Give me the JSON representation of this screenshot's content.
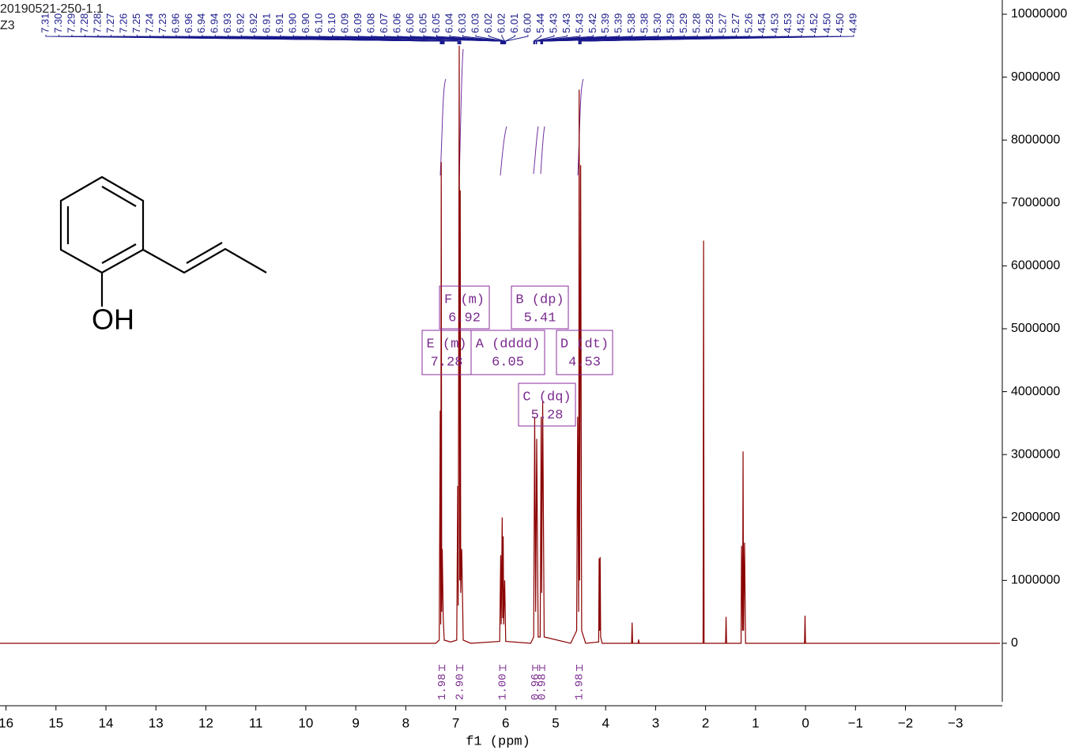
{
  "header": {
    "title": "20190521-250-1.1",
    "subtitle": "Z3"
  },
  "structure": {
    "label": "OH"
  },
  "chart_data": {
    "type": "line",
    "xlabel": "f1 (ppm)",
    "xlim": [
      16.12,
      -3.89
    ],
    "ylim": [
      -930000,
      10226000
    ],
    "xticks": [
      16,
      15,
      14,
      13,
      12,
      11,
      10,
      9,
      8,
      7,
      6,
      5,
      4,
      3,
      2,
      1,
      0,
      {
        "value": -1,
        "label": "−1"
      },
      {
        "value": -2,
        "label": "−2"
      },
      {
        "value": -3,
        "label": "−3"
      }
    ],
    "yticks": [
      0,
      1000000,
      2000000,
      3000000,
      4000000,
      5000000,
      6000000,
      7000000,
      8000000,
      9000000,
      10000000
    ],
    "series": [
      {
        "color": "#8b0000",
        "x": [
          16.12,
          7.4,
          7.33,
          7.31,
          7.3,
          7.29,
          7.28,
          7.27,
          7.25,
          7.23,
          7.1,
          6.98,
          6.96,
          6.95,
          6.93,
          6.92,
          6.91,
          6.9,
          6.88,
          6.85,
          6.7,
          6.12,
          6.1,
          6.09,
          6.07,
          6.06,
          6.05,
          6.04,
          6.02,
          6.0,
          5.5,
          5.44,
          5.42,
          5.4,
          5.38,
          5.35,
          5.31,
          5.29,
          5.28,
          5.26,
          5.23,
          4.7,
          4.58,
          4.56,
          4.54,
          4.53,
          4.52,
          4.5,
          4.48,
          4.4,
          4.14,
          4.13,
          4.12,
          4.11,
          4.1,
          4.07,
          3.48,
          3.47,
          3.46,
          3.35,
          3.34,
          3.33,
          2.05,
          2.04,
          2.03,
          1.6,
          1.59,
          1.58,
          1.29,
          1.28,
          1.26,
          1.25,
          1.24,
          1.22,
          1.2,
          0.02,
          0.01,
          0.0,
          -3.89
        ],
        "values": [
          0,
          0,
          50000,
          3700000,
          300000,
          7650000,
          500000,
          1500000,
          400000,
          50000,
          20000,
          50000,
          2500000,
          600000,
          9500000,
          1000000,
          7200000,
          800000,
          1500000,
          50000,
          0,
          30000,
          1400000,
          300000,
          2000000,
          400000,
          1700000,
          300000,
          1000000,
          30000,
          0,
          100000,
          3600000,
          500000,
          3250000,
          100000,
          100000,
          3600000,
          800000,
          3850000,
          100000,
          0,
          200000,
          3600000,
          500000,
          8800000,
          1000000,
          7600000,
          200000,
          0,
          20000,
          1350000,
          200000,
          1370000,
          100000,
          0,
          0,
          330000,
          0,
          0,
          60000,
          0,
          0,
          6400000,
          0,
          0,
          420000,
          0,
          0,
          1550000,
          200000,
          3050000,
          200000,
          1600000,
          0,
          0,
          440000,
          0,
          0
        ]
      }
    ],
    "peak_labels": [
      "7.31",
      "7.30",
      "7.29",
      "7.28",
      "7.28",
      "7.27",
      "7.26",
      "7.25",
      "7.24",
      "7.23",
      "6.96",
      "6.96",
      "6.94",
      "6.94",
      "6.93",
      "6.92",
      "6.92",
      "6.91",
      "6.91",
      "6.90",
      "6.90",
      "6.10",
      "6.10",
      "6.09",
      "6.09",
      "6.08",
      "6.07",
      "6.06",
      "6.06",
      "6.05",
      "6.05",
      "6.04",
      "6.03",
      "6.03",
      "6.02",
      "6.02",
      "6.01",
      "6.00",
      "5.44",
      "5.43",
      "5.43",
      "5.43",
      "5.42",
      "5.39",
      "5.39",
      "5.38",
      "5.38",
      "5.30",
      "5.29",
      "5.29",
      "5.28",
      "5.28",
      "5.27",
      "5.27",
      "5.26",
      "4.54",
      "4.53",
      "4.53",
      "4.52",
      "4.52",
      "4.50",
      "4.50",
      "4.49"
    ],
    "multiplets": [
      {
        "label": "E (m)",
        "shift": "7.28"
      },
      {
        "label": "F (m)",
        "shift": "6.92"
      },
      {
        "label": "A (dddd)",
        "shift": "6.05"
      },
      {
        "label": "B (dp)",
        "shift": "5.41"
      },
      {
        "label": "C (dq)",
        "shift": "5.28"
      },
      {
        "label": "D (dt)",
        "shift": "4.53"
      }
    ],
    "integrals": [
      {
        "from": 7.33,
        "to": 7.22,
        "label": "1.98"
      },
      {
        "from": 6.98,
        "to": 6.86,
        "label": "2.90"
      },
      {
        "from": 6.12,
        "to": 6.0,
        "label": "1.00"
      },
      {
        "from": 5.46,
        "to": 5.36,
        "label": "0.96"
      },
      {
        "from": 5.32,
        "to": 5.22,
        "label": "0.98"
      },
      {
        "from": 4.58,
        "to": 4.47,
        "label": "1.98"
      }
    ]
  }
}
